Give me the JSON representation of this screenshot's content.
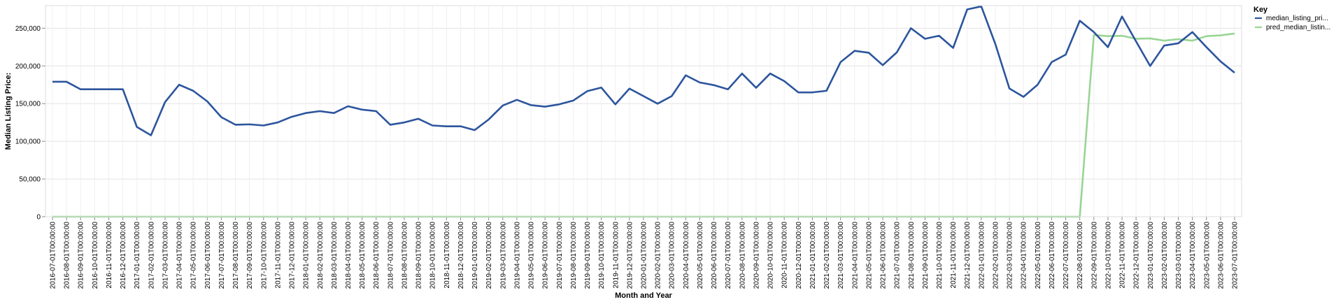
{
  "chart_data": {
    "type": "line",
    "xlabel": "Month and Year",
    "ylabel": "Median Listing Price:",
    "ylim": [
      0,
      280000
    ],
    "yticks": [
      0,
      50000,
      100000,
      150000,
      200000,
      250000
    ],
    "ytick_labels": [
      "0",
      "50,000",
      "100,000",
      "150,000",
      "200,000",
      "250,000"
    ],
    "grid": true,
    "legend": {
      "title": "Key",
      "placement": "top-right"
    },
    "x": [
      "2016-07-01T00:00:00",
      "2016-08-01T00:00:00",
      "2016-09-01T00:00:00",
      "2016-10-01T00:00:00",
      "2016-11-01T00:00:00",
      "2016-12-01T00:00:00",
      "2017-01-01T00:00:00",
      "2017-02-01T00:00:00",
      "2017-03-01T00:00:00",
      "2017-04-01T00:00:00",
      "2017-05-01T00:00:00",
      "2017-06-01T00:00:00",
      "2017-07-01T00:00:00",
      "2017-08-01T00:00:00",
      "2017-09-01T00:00:00",
      "2017-10-01T00:00:00",
      "2017-11-01T00:00:00",
      "2017-12-01T00:00:00",
      "2018-01-01T00:00:00",
      "2018-02-01T00:00:00",
      "2018-03-01T00:00:00",
      "2018-04-01T00:00:00",
      "2018-05-01T00:00:00",
      "2018-06-01T00:00:00",
      "2018-07-01T00:00:00",
      "2018-08-01T00:00:00",
      "2018-09-01T00:00:00",
      "2018-10-01T00:00:00",
      "2018-11-01T00:00:00",
      "2018-12-01T00:00:00",
      "2019-01-01T00:00:00",
      "2019-02-01T00:00:00",
      "2019-03-01T00:00:00",
      "2019-04-01T00:00:00",
      "2019-05-01T00:00:00",
      "2019-06-01T00:00:00",
      "2019-07-01T00:00:00",
      "2019-08-01T00:00:00",
      "2019-09-01T00:00:00",
      "2019-10-01T00:00:00",
      "2019-11-01T00:00:00",
      "2019-12-01T00:00:00",
      "2020-01-01T00:00:00",
      "2020-02-01T00:00:00",
      "2020-03-01T00:00:00",
      "2020-04-01T00:00:00",
      "2020-05-01T00:00:00",
      "2020-06-01T00:00:00",
      "2020-07-01T00:00:00",
      "2020-08-01T00:00:00",
      "2020-09-01T00:00:00",
      "2020-10-01T00:00:00",
      "2020-11-01T00:00:00",
      "2020-12-01T00:00:00",
      "2021-01-01T00:00:00",
      "2021-02-01T00:00:00",
      "2021-03-01T00:00:00",
      "2021-04-01T00:00:00",
      "2021-05-01T00:00:00",
      "2021-06-01T00:00:00",
      "2021-07-01T00:00:00",
      "2021-08-01T00:00:00",
      "2021-09-01T00:00:00",
      "2021-10-01T00:00:00",
      "2021-11-01T00:00:00",
      "2021-12-01T00:00:00",
      "2022-01-01T00:00:00",
      "2022-02-01T00:00:00",
      "2022-03-01T00:00:00",
      "2022-04-01T00:00:00",
      "2022-05-01T00:00:00",
      "2022-06-01T00:00:00",
      "2022-07-01T00:00:00",
      "2022-08-01T00:00:00",
      "2022-09-01T00:00:00",
      "2022-10-01T00:00:00",
      "2022-11-01T00:00:00",
      "2022-12-01T00:00:00",
      "2023-01-01T00:00:00",
      "2023-02-01T00:00:00",
      "2023-03-01T00:00:00",
      "2023-04-01T00:00:00",
      "2023-05-01T00:00:00",
      "2023-06-01T00:00:00",
      "2023-07-01T00:00:00"
    ],
    "series": [
      {
        "name": "median_listing_pri...",
        "color": "#2c559d",
        "values": [
          179000,
          179000,
          169000,
          169000,
          169000,
          169000,
          119000,
          108000,
          152000,
          175000,
          167000,
          153000,
          132000,
          122000,
          122500,
          121000,
          125000,
          132500,
          137500,
          140000,
          137500,
          146500,
          142000,
          140000,
          122000,
          125000,
          129900,
          121000,
          119900,
          119900,
          114900,
          129000,
          147500,
          155000,
          148000,
          146000,
          149000,
          154000,
          166500,
          171250,
          149000,
          169900,
          159900,
          149900,
          159900,
          187500,
          178000,
          174500,
          169000,
          189900,
          171000,
          189900,
          179900,
          164900,
          164900,
          167000,
          205000,
          220000,
          217500,
          201000,
          218000,
          250000,
          236000,
          240000,
          223900,
          274900,
          279000,
          229000,
          170000,
          159000,
          175000,
          205000,
          215000,
          259900,
          244900,
          224900,
          265500,
          232500,
          199900,
          227000,
          230000,
          244900,
          224900,
          206000,
          191000
        ]
      },
      {
        "name": "pred_median_listin...",
        "color": "#98d594",
        "values": [
          0,
          0,
          0,
          0,
          0,
          0,
          0,
          0,
          0,
          0,
          0,
          0,
          0,
          0,
          0,
          0,
          0,
          0,
          0,
          0,
          0,
          0,
          0,
          0,
          0,
          0,
          0,
          0,
          0,
          0,
          0,
          0,
          0,
          0,
          0,
          0,
          0,
          0,
          0,
          0,
          0,
          0,
          0,
          0,
          0,
          0,
          0,
          0,
          0,
          0,
          0,
          0,
          0,
          0,
          0,
          0,
          0,
          0,
          0,
          0,
          0,
          0,
          0,
          0,
          0,
          0,
          0,
          0,
          0,
          0,
          0,
          0,
          0,
          0,
          241000,
          239500,
          240000,
          236000,
          236500,
          233500,
          235500,
          233500,
          239500,
          240500,
          243000
        ]
      }
    ]
  }
}
